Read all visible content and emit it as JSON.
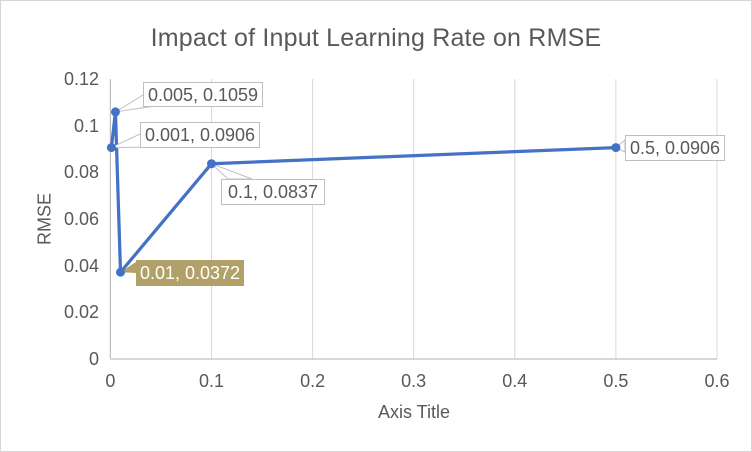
{
  "chart_data": {
    "type": "line",
    "title": "Impact of Input Learning Rate on RMSE",
    "xlabel": "Axis Title",
    "ylabel": "RMSE",
    "xlim": [
      0,
      0.6
    ],
    "ylim": [
      0,
      0.12
    ],
    "x_ticks": [
      "0",
      "0.1",
      "0.2",
      "0.3",
      "0.4",
      "0.5",
      "0.6"
    ],
    "y_ticks": [
      "0",
      "0.02",
      "0.04",
      "0.06",
      "0.08",
      "0.1",
      "0.12"
    ],
    "gridlines": "vertical-major-only",
    "legend": "none",
    "series": [
      {
        "name": "RMSE",
        "color": "#4472C4",
        "marker": "circle",
        "points": [
          {
            "x": 0.001,
            "y": 0.0906,
            "label": "0.001, 0.0906",
            "highlighted": false
          },
          {
            "x": 0.005,
            "y": 0.1059,
            "label": "0.005, 0.1059",
            "highlighted": false
          },
          {
            "x": 0.01,
            "y": 0.0372,
            "label": "0.01, 0.0372",
            "highlighted": true
          },
          {
            "x": 0.1,
            "y": 0.0837,
            "label": "0.1, 0.0837",
            "highlighted": false
          },
          {
            "x": 0.5,
            "y": 0.0906,
            "label": "0.5, 0.0906",
            "highlighted": false
          }
        ]
      }
    ],
    "colors": {
      "line": "#4472C4",
      "gridline": "#D9D9D9",
      "axis_line": "#BFBFBF",
      "text": "#595959",
      "label_border": "#BFBFBF",
      "label_bg": "#FFFFFF",
      "highlight_bg": "#B1A168",
      "highlight_text": "#FFFFFF"
    }
  }
}
